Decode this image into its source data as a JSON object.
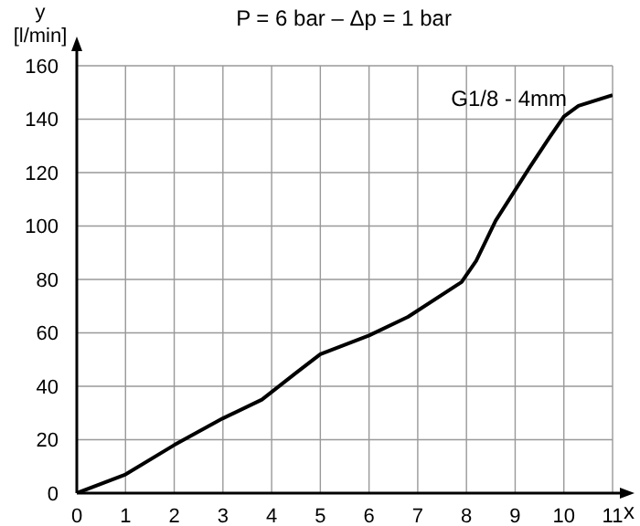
{
  "chart_data": {
    "type": "line",
    "title": "P = 6 bar – Δp = 1 bar",
    "xlabel": "x",
    "ylabel": "y\n[l/min]",
    "x": [
      0,
      1,
      2,
      3,
      3.8,
      4.5,
      5,
      6,
      6.8,
      7.9,
      8.2,
      8.6,
      9.3,
      9.7,
      10,
      10.3,
      11
    ],
    "series": [
      {
        "name": "G1/8 - 4mm",
        "color": "#000000",
        "values": [
          0,
          7,
          18,
          28,
          35,
          45,
          52,
          59,
          66,
          79,
          87,
          102,
          122,
          133,
          141,
          145,
          149
        ]
      }
    ],
    "xlim": [
      0,
      11
    ],
    "xticks": [
      0,
      1,
      2,
      3,
      4,
      5,
      6,
      7,
      8,
      9,
      10,
      11
    ],
    "ylim": [
      0,
      160
    ],
    "yticks": [
      0,
      20,
      40,
      60,
      80,
      100,
      120,
      140,
      160
    ],
    "grid": true,
    "marker": "none",
    "line_style": "solid",
    "legend": false
  }
}
